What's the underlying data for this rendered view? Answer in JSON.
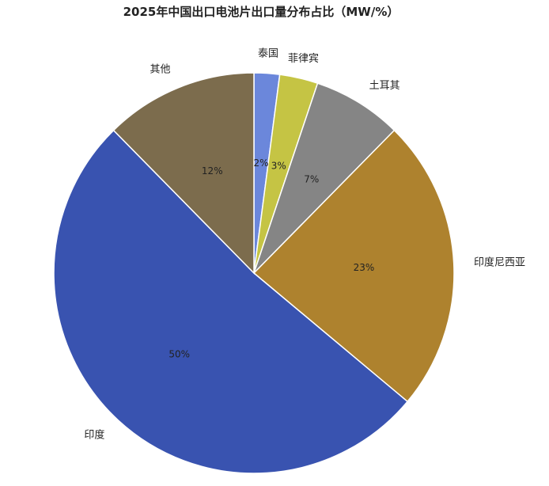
{
  "chart_data": {
    "type": "pie",
    "title": "2025年中国出口电池片出口量分布占比（MW/%）",
    "slices": [
      {
        "label": "泰国",
        "value": 2,
        "value_label": "2%",
        "color": "#6b87db"
      },
      {
        "label": "菲律宾",
        "value": 3,
        "value_label": "3%",
        "color": "#c5c444"
      },
      {
        "label": "土耳其",
        "value": 7,
        "value_label": "7%",
        "color": "#858585"
      },
      {
        "label": "印度尼西亚",
        "value": 23,
        "value_label": "23%",
        "color": "#ae822e"
      },
      {
        "label": "印度",
        "value": 50,
        "value_label": "50%",
        "color": "#3953b0"
      },
      {
        "label": "其他",
        "value": 12,
        "value_label": "12%",
        "color": "#7c6c4d"
      }
    ],
    "legend": "none",
    "start_direction": "top",
    "direction": "clockwise"
  }
}
